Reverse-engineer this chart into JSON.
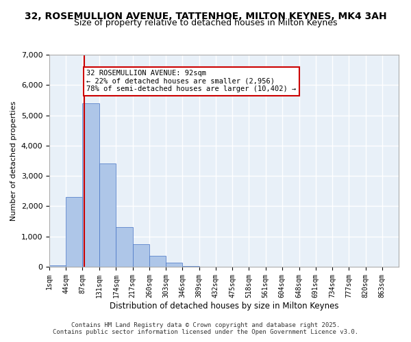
{
  "title_line1": "32, ROSEMULLION AVENUE, TATTENHOE, MILTON KEYNES, MK4 3AH",
  "title_line2": "Size of property relative to detached houses in Milton Keynes",
  "xlabel": "Distribution of detached houses by size in Milton Keynes",
  "ylabel": "Number of detached properties",
  "bin_labels": [
    "1sqm",
    "44sqm",
    "87sqm",
    "131sqm",
    "174sqm",
    "217sqm",
    "260sqm",
    "303sqm",
    "346sqm",
    "389sqm",
    "432sqm",
    "475sqm",
    "518sqm",
    "561sqm",
    "604sqm",
    "648sqm",
    "691sqm",
    "734sqm",
    "777sqm",
    "820sqm",
    "863sqm"
  ],
  "bin_edges": [
    1,
    44,
    87,
    131,
    174,
    217,
    260,
    303,
    346,
    389,
    432,
    475,
    518,
    561,
    604,
    648,
    691,
    734,
    777,
    820,
    863
  ],
  "bar_heights": [
    50,
    2300,
    5400,
    3400,
    1300,
    750,
    370,
    130,
    30,
    5,
    2,
    1,
    0,
    0,
    0,
    0,
    0,
    0,
    0,
    0
  ],
  "bar_color": "#aec6e8",
  "bar_edge_color": "#4472c4",
  "background_color": "#e8f0f8",
  "grid_color": "#ffffff",
  "vline_x": 92,
  "vline_color": "#cc0000",
  "annotation_text": "32 ROSEMULLION AVENUE: 92sqm\n← 22% of detached houses are smaller (2,956)\n78% of semi-detached houses are larger (10,402) →",
  "annotation_box_color": "#ffffff",
  "annotation_box_edge": "#cc0000",
  "ylim": [
    0,
    7000
  ],
  "yticks": [
    0,
    1000,
    2000,
    3000,
    4000,
    5000,
    6000,
    7000
  ],
  "footer_line1": "Contains HM Land Registry data © Crown copyright and database right 2025.",
  "footer_line2": "Contains public sector information licensed under the Open Government Licence v3.0."
}
